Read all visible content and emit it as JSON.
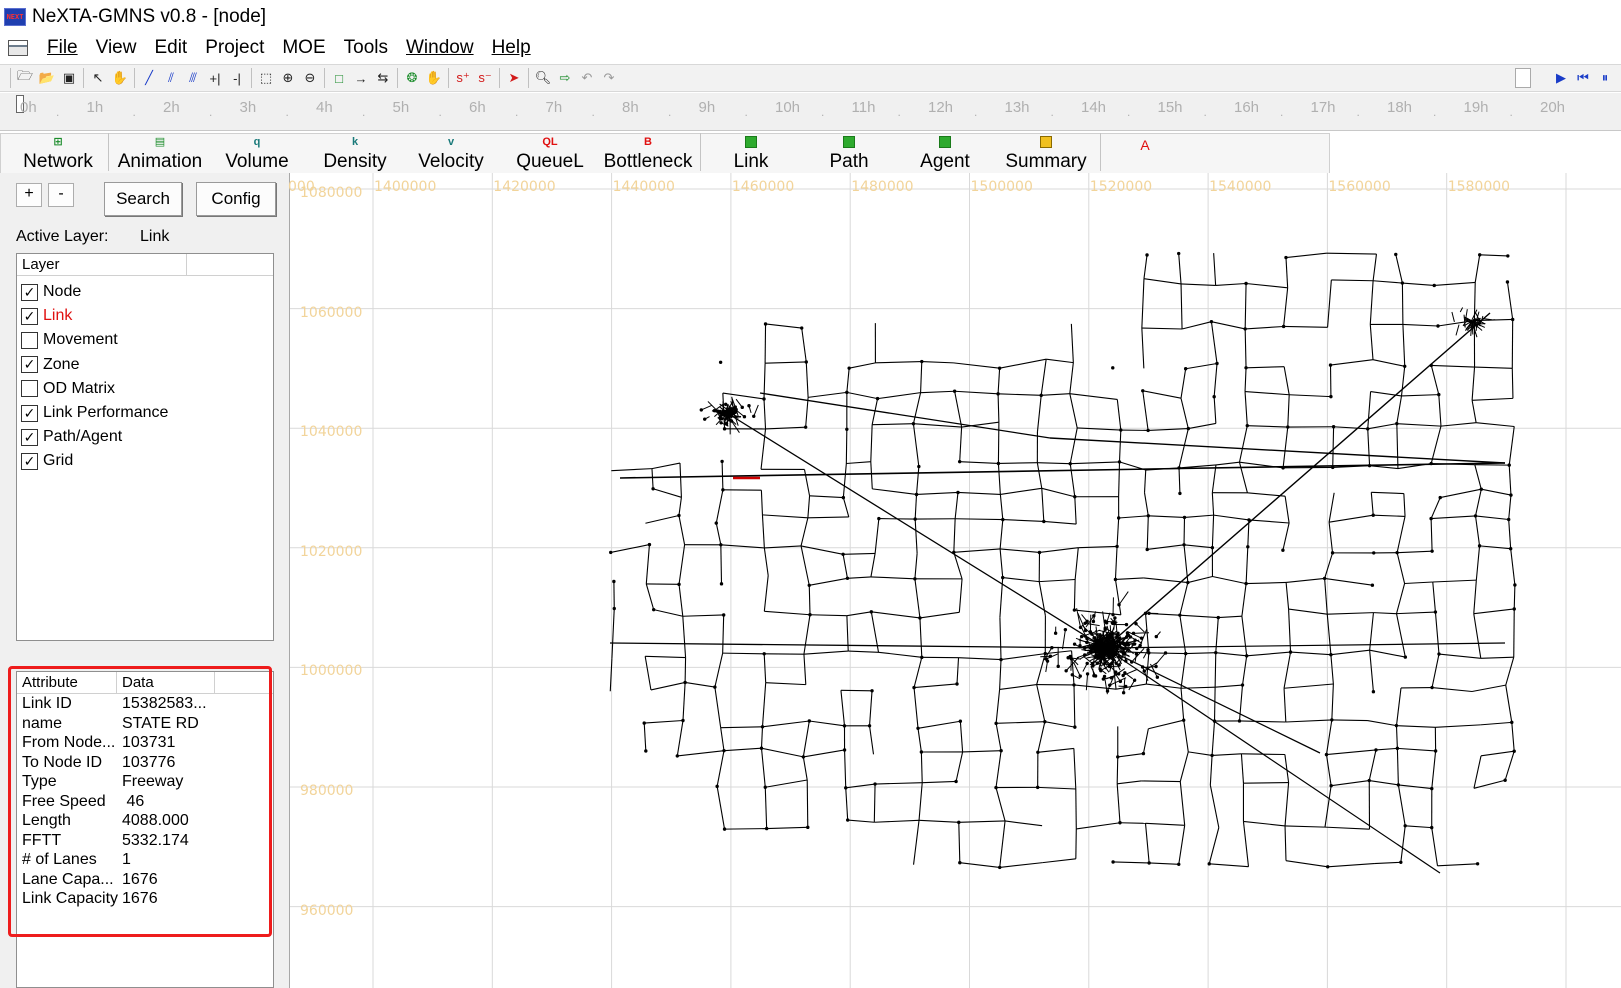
{
  "window": {
    "title": "NeXTA-GMNS v0.8 - [node]",
    "app_icon": "nexta-icon",
    "app_icon_text": "NEXT"
  },
  "menu": {
    "items": [
      {
        "label": "File",
        "underlined": true
      },
      {
        "label": "View",
        "underlined": false
      },
      {
        "label": "Edit",
        "underlined": false
      },
      {
        "label": "Project",
        "underlined": false
      },
      {
        "label": "MOE",
        "underlined": false
      },
      {
        "label": "Tools",
        "underlined": false
      },
      {
        "label": "Window",
        "underlined": true
      },
      {
        "label": "Help",
        "underlined": true
      }
    ]
  },
  "toolbar": {
    "icons": [
      "open-icon",
      "open-folder-icon",
      "save-icon",
      "select-arrow-icon",
      "pan-hand-icon",
      "draw-link-icon",
      "draw-link-icon",
      "draw-link-icon",
      "split-link-icon",
      "split-link-icon",
      "zoom-extent-icon",
      "zoom-in-icon",
      "zoom-out-icon",
      "node-icon",
      "arrow-right-icon",
      "bidirectional-arrows-icon",
      "add-node-icon",
      "move-hand-icon",
      "origin-icon",
      "destination-icon",
      "run-icon",
      "search-icon",
      "export-icon",
      "undo-icon",
      "redo-icon"
    ]
  },
  "playback": {
    "icons": [
      "play-icon",
      "rewind-icon",
      "pause-icon"
    ]
  },
  "timeline": {
    "ticks": [
      "0h",
      "1h",
      "2h",
      "3h",
      "4h",
      "5h",
      "6h",
      "7h",
      "8h",
      "9h",
      "10h",
      "11h",
      "12h",
      "13h",
      "14h",
      "15h",
      "16h",
      "17h",
      "18h",
      "19h",
      "20h"
    ]
  },
  "tabs": [
    {
      "label": "Network",
      "icon_text": "",
      "icon": "network-icon",
      "color": "#1a8c2a"
    },
    {
      "label": "Animation",
      "icon_text": "",
      "icon": "car-icon",
      "color": "#1a8c2a"
    },
    {
      "label": "Volume",
      "icon_text": "q",
      "icon": "volume-icon",
      "color": "#1a7a7a"
    },
    {
      "label": "Density",
      "icon_text": "k",
      "icon": "density-icon",
      "color": "#1a7a7a"
    },
    {
      "label": "Velocity",
      "icon_text": "v",
      "icon": "velocity-icon",
      "color": "#1a7a7a"
    },
    {
      "label": "QueueL",
      "icon_text": "QL",
      "icon": "queue-icon",
      "color": "#e01010"
    },
    {
      "label": "Bottleneck",
      "icon_text": "B",
      "icon": "bottleneck-icon",
      "color": "#e01010"
    },
    {
      "label": "Link",
      "icon_text": "",
      "icon": "link-icon",
      "color": "#1a8c2a"
    },
    {
      "label": "Path",
      "icon_text": "",
      "icon": "path-icon",
      "color": "#1a8c2a"
    },
    {
      "label": "Agent",
      "icon_text": "",
      "icon": "agent-icon",
      "color": "#1a8c2a"
    },
    {
      "label": "Summary",
      "icon_text": "",
      "icon": "summary-icon",
      "color": "#1a8c2a"
    },
    {
      "label": "",
      "icon_text": "A",
      "icon": "text-a-icon",
      "color": "#e01010"
    }
  ],
  "panel": {
    "zoom_in_label": "+",
    "zoom_out_label": "-",
    "search_label": "Search",
    "config_label": "Config",
    "active_layer_label": "Active Layer:",
    "active_layer_value": "Link",
    "layer_header": "Layer",
    "layers": [
      {
        "name": "Node",
        "checked": true,
        "active": false
      },
      {
        "name": "Link",
        "checked": true,
        "active": true
      },
      {
        "name": "Movement",
        "checked": false,
        "active": false
      },
      {
        "name": "Zone",
        "checked": true,
        "active": false
      },
      {
        "name": "OD Matrix",
        "checked": false,
        "active": false
      },
      {
        "name": "Link Performance",
        "checked": true,
        "active": false
      },
      {
        "name": "Path/Agent",
        "checked": true,
        "active": false
      },
      {
        "name": "Grid",
        "checked": true,
        "active": false
      }
    ],
    "attr_header": "Attribute",
    "data_header": "Data",
    "attributes": [
      {
        "key": "Link ID",
        "value": "15382583..."
      },
      {
        "key": "name",
        "value": "STATE RD"
      },
      {
        "key": "From Node...",
        "value": "103731"
      },
      {
        "key": "To Node ID",
        "value": "103776"
      },
      {
        "key": "Type",
        "value": "Freeway"
      },
      {
        "key": "Free Speed",
        "value": " 46"
      },
      {
        "key": "Length",
        "value": "4088.000"
      },
      {
        "key": "FFTT",
        "value": "5332.174"
      },
      {
        "key": "# of Lanes",
        "value": "1"
      },
      {
        "key": "Lane Capa...",
        "value": "1676"
      },
      {
        "key": "Link Capacity",
        "value": "1676"
      }
    ],
    "highlight_color": "#ee1c1c"
  },
  "map": {
    "x_labels": [
      "1400000",
      "1420000",
      "1440000",
      "1460000",
      "1480000",
      "1500000",
      "1520000",
      "1540000",
      "1560000",
      "1580000"
    ],
    "y_labels": [
      "1080000",
      "1060000",
      "1040000",
      "1020000",
      "1000000",
      "980000",
      "960000"
    ],
    "corner_label_fragment": "000",
    "grid_label_color": "#f2d49a",
    "network_color": "#000000",
    "selected_link_color": "#cc0000"
  }
}
